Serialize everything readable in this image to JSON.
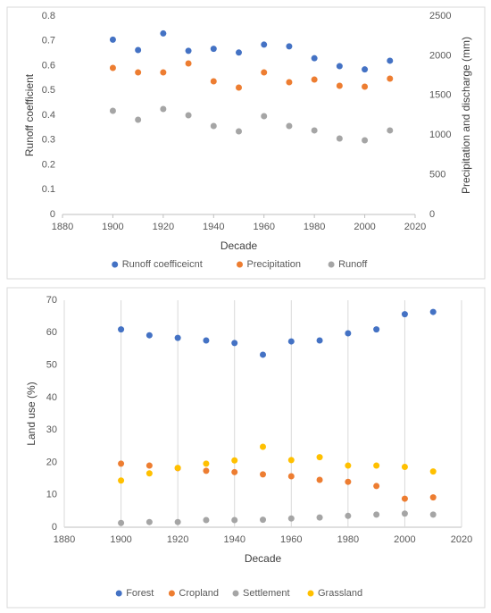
{
  "chart_data": [
    {
      "type": "scatter",
      "x_label": "Decade",
      "y_label": "Runoff coefficient",
      "y2_label": "Precipitation and discharge (mm)",
      "x": [
        1900,
        1910,
        1920,
        1930,
        1940,
        1950,
        1960,
        1970,
        1980,
        1990,
        2000,
        2010
      ],
      "xlim": [
        1880,
        2020
      ],
      "xticks": [
        1880,
        1900,
        1920,
        1940,
        1960,
        1980,
        2000,
        2020
      ],
      "ylim": [
        0,
        0.8
      ],
      "yticks": [
        0,
        0.1,
        0.2,
        0.3,
        0.4,
        0.5,
        0.6,
        0.7,
        0.8
      ],
      "y2lim": [
        0,
        2500
      ],
      "y2ticks": [
        0,
        500,
        1000,
        1500,
        2000,
        2500
      ],
      "legend": "bottom",
      "series": [
        {
          "name": "Runoff coefficeicnt",
          "color": "#4472c4",
          "values": [
            0.705,
            0.663,
            0.73,
            0.66,
            0.668,
            0.653,
            0.685,
            0.678,
            0.63,
            0.598,
            0.585,
            0.62
          ]
        },
        {
          "name": "Precipitation",
          "color": "#ed7d31",
          "axis": "y2",
          "values": [
            1847,
            1790,
            1790,
            1903,
            1678,
            1599,
            1790,
            1667,
            1700,
            1622,
            1610,
            1712
          ]
        },
        {
          "name": "Runoff",
          "color": "#a5a5a5",
          "axis": "y2",
          "values": [
            1306,
            1194,
            1329,
            1250,
            1115,
            1047,
            1239,
            1115,
            1059,
            957,
            935,
            1059
          ]
        }
      ]
    },
    {
      "type": "scatter",
      "x_label": "Decade",
      "y_label": "Land use (%)",
      "x": [
        1900,
        1910,
        1920,
        1930,
        1940,
        1950,
        1960,
        1970,
        1980,
        1990,
        2000,
        2010
      ],
      "xlim": [
        1880,
        2020
      ],
      "xticks": [
        1880,
        1900,
        1920,
        1940,
        1960,
        1980,
        2000,
        2020
      ],
      "ylim": [
        0,
        70
      ],
      "yticks": [
        0,
        10,
        20,
        30,
        40,
        50,
        60,
        70
      ],
      "xgrid": true,
      "legend": "bottom",
      "series": [
        {
          "name": "Forest",
          "color": "#4472c4",
          "values": [
            61,
            59.2,
            58.4,
            57.6,
            56.8,
            53.2,
            57.3,
            57.6,
            59.8,
            61,
            65.7,
            66.4
          ]
        },
        {
          "name": "Cropland",
          "color": "#ed7d31",
          "values": [
            19.6,
            19,
            18.2,
            17.4,
            17,
            16.3,
            15.7,
            14.6,
            14,
            12.7,
            8.8,
            9.2
          ]
        },
        {
          "name": "Settlement",
          "color": "#a5a5a5",
          "values": [
            1.3,
            1.6,
            1.6,
            2.2,
            2.2,
            2.3,
            2.7,
            3,
            3.5,
            3.9,
            4.2,
            3.9
          ]
        },
        {
          "name": "Grassland",
          "color": "#ffc000",
          "values": [
            14.4,
            16.6,
            18.3,
            19.6,
            20.6,
            24.8,
            20.7,
            21.6,
            19,
            19,
            18.6,
            17.2
          ]
        }
      ]
    }
  ]
}
